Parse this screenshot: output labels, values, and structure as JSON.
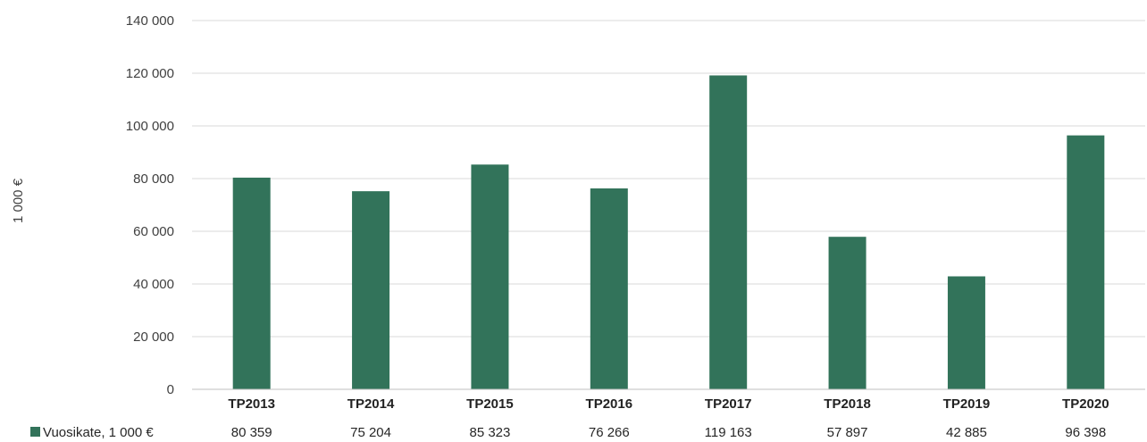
{
  "chart_data": {
    "type": "bar",
    "categories": [
      "TP2013",
      "TP2014",
      "TP2015",
      "TP2016",
      "TP2017",
      "TP2018",
      "TP2019",
      "TP2020"
    ],
    "series": [
      {
        "name": "Vuosikate, 1 000 €",
        "values": [
          80359,
          75204,
          85323,
          76266,
          119163,
          57897,
          42885,
          96398
        ],
        "value_labels": [
          "80 359",
          "75 204",
          "85 323",
          "76 266",
          "119 163",
          "57 897",
          "42 885",
          "96 398"
        ],
        "color": "#32735a"
      }
    ],
    "title": "",
    "xlabel": "",
    "ylabel": "1 000 €",
    "ylim": [
      0,
      140000
    ],
    "yticks": [
      0,
      20000,
      40000,
      60000,
      80000,
      100000,
      120000,
      140000
    ],
    "ytick_labels": [
      "0",
      "20 000",
      "40 000",
      "60 000",
      "80 000",
      "100 000",
      "120 000",
      "140 000"
    ],
    "grid": true,
    "legend": "bottom-left, as data table row",
    "colors": {
      "bar": "#32735a",
      "grid": "#d9d9d9"
    }
  }
}
